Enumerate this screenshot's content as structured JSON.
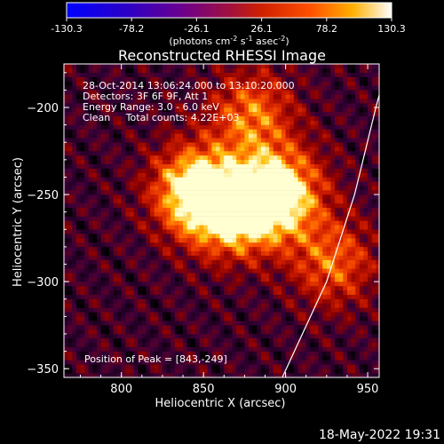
{
  "chart_data": {
    "type": "heatmap",
    "title": "Reconstructed RHESSI Image",
    "xlabel": "Heliocentric X (arcsec)",
    "ylabel": "Heliocentric Y (arcsec)",
    "xlim": [
      765,
      957
    ],
    "ylim": [
      -355,
      -175
    ],
    "x_ticks": [
      800,
      850,
      900,
      950
    ],
    "y_ticks": [
      -200,
      -250,
      -300,
      -350
    ],
    "colorbar": {
      "ticks": [
        "-130.3",
        "-78.2",
        "-26.1",
        "26.1",
        "78.2",
        "130.3"
      ],
      "units_base": "(photons cm",
      "units_sup1": "-2",
      "units_mid": " s",
      "units_sup2": "-1",
      "units_mid2": " asec",
      "units_sup3": "-2",
      "units_end": ")",
      "range": [
        -130.3,
        130.3
      ]
    },
    "info_lines": [
      "28-Oct-2014 13:06:24.000 to 13:10:20.000",
      "Detectors: 3F 6F 9F, Att 1",
      "Energy Range: 3.0 - 6.0 keV",
      "Clean     Total counts: 4.22E+03"
    ],
    "peak_label": "Position of Peak = [843,-249]",
    "peak": [
      843,
      -249
    ],
    "limb_points": [
      [
        898,
        -355
      ],
      [
        925,
        -300
      ],
      [
        942,
        -250
      ],
      [
        955,
        -200
      ],
      [
        962,
        -175
      ]
    ],
    "sources": [
      {
        "x": 843,
        "y": -249,
        "amp": 130
      },
      {
        "x": 865,
        "y": -262,
        "amp": 95
      },
      {
        "x": 888,
        "y": -255,
        "amp": 85
      },
      {
        "x": 878,
        "y": -205,
        "amp": 80
      },
      {
        "x": 928,
        "y": -290,
        "amp": 75
      },
      {
        "x": 900,
        "y": -248,
        "amp": 70
      }
    ],
    "timestamp": "18-May-2022 19:31"
  }
}
